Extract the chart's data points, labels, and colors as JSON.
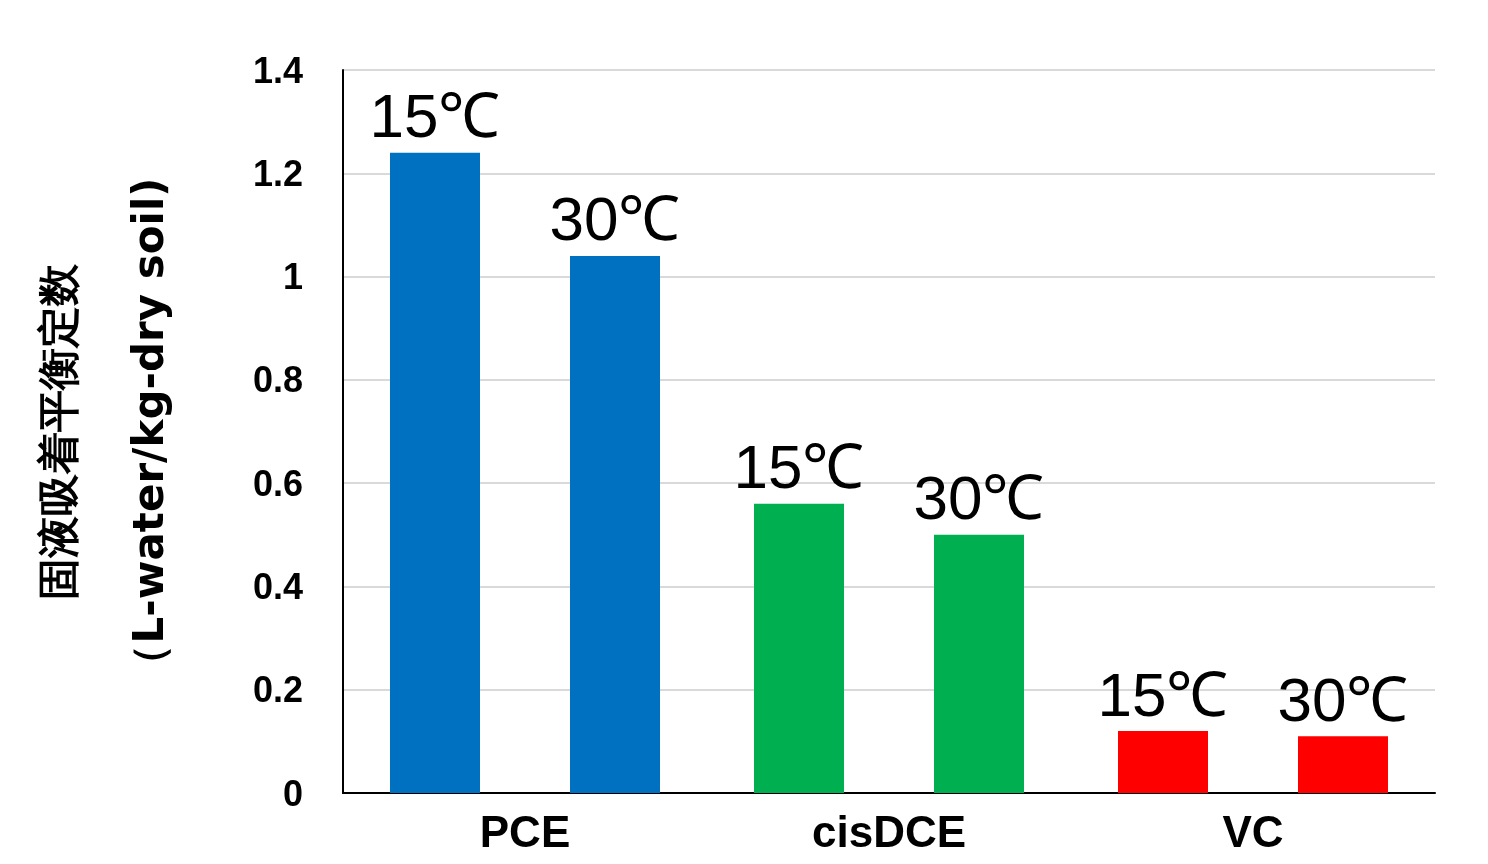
{
  "chart_data": {
    "type": "bar",
    "ylabel": "固液吸着平衡定数（L-water/kg-dry soil)",
    "categories": [
      "PCE",
      "cisDCE",
      "VC"
    ],
    "series": [
      {
        "name": "15℃",
        "colors": [
          "#0070c0",
          "#00b050",
          "#ff0000"
        ],
        "values": [
          1.24,
          0.56,
          0.12
        ]
      },
      {
        "name": "30℃",
        "colors": [
          "#0070c0",
          "#00b050",
          "#ff0000"
        ],
        "values": [
          1.04,
          0.5,
          0.11
        ]
      }
    ],
    "ylim": [
      0,
      1.4
    ],
    "yticks": [
      0,
      0.2,
      0.4,
      0.6,
      0.8,
      1,
      1.2,
      1.4
    ],
    "grid": "y",
    "legend": false
  }
}
